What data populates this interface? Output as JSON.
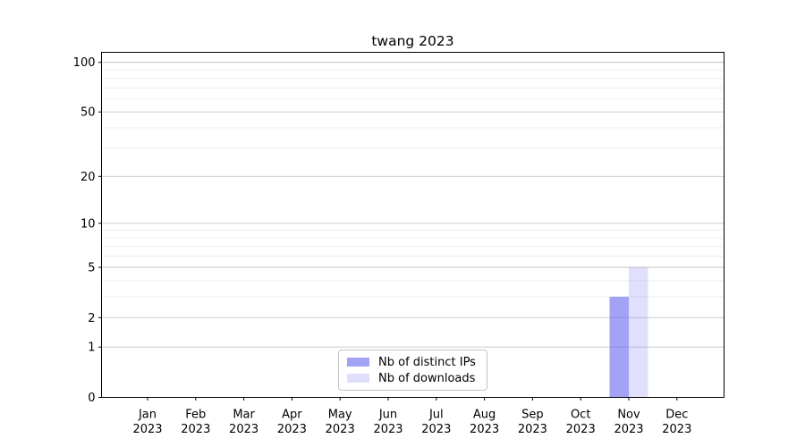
{
  "chart_data": {
    "type": "bar",
    "title": "twang 2023",
    "months": [
      "Jan",
      "Feb",
      "Mar",
      "Apr",
      "May",
      "Jun",
      "Jul",
      "Aug",
      "Sep",
      "Oct",
      "Nov",
      "Dec"
    ],
    "year": "2023",
    "categories": [
      "Jan 2023",
      "Feb 2023",
      "Mar 2023",
      "Apr 2023",
      "May 2023",
      "Jun 2023",
      "Jul 2023",
      "Aug 2023",
      "Sep 2023",
      "Oct 2023",
      "Nov 2023",
      "Dec 2023"
    ],
    "series": [
      {
        "name": "Nb of distinct IPs",
        "color": "#6666ee",
        "alpha": 0.6,
        "values": [
          0,
          0,
          0,
          0,
          0,
          0,
          0,
          0,
          0,
          0,
          3,
          0
        ]
      },
      {
        "name": "Nb of downloads",
        "color": "#6666ee",
        "alpha": 0.2,
        "values": [
          0,
          0,
          0,
          0,
          0,
          0,
          0,
          0,
          0,
          0,
          5,
          0
        ]
      }
    ],
    "yscale": "log1p",
    "ylim": [
      0,
      115
    ],
    "y_major_ticks": [
      0,
      1,
      2,
      5,
      10,
      20,
      50,
      100
    ],
    "y_minor_ticks": [
      3,
      4,
      6,
      7,
      8,
      9,
      30,
      40,
      60,
      70,
      80,
      90
    ],
    "grid": true,
    "legend": {
      "location": "lower center",
      "entries": [
        "Nb of distinct IPs",
        "Nb of downloads"
      ]
    },
    "colors": {
      "grid_major": "#c6c6c6",
      "grid_minor": "#ececec",
      "spine": "#000000",
      "legend_border": "#c3c3c3"
    }
  }
}
